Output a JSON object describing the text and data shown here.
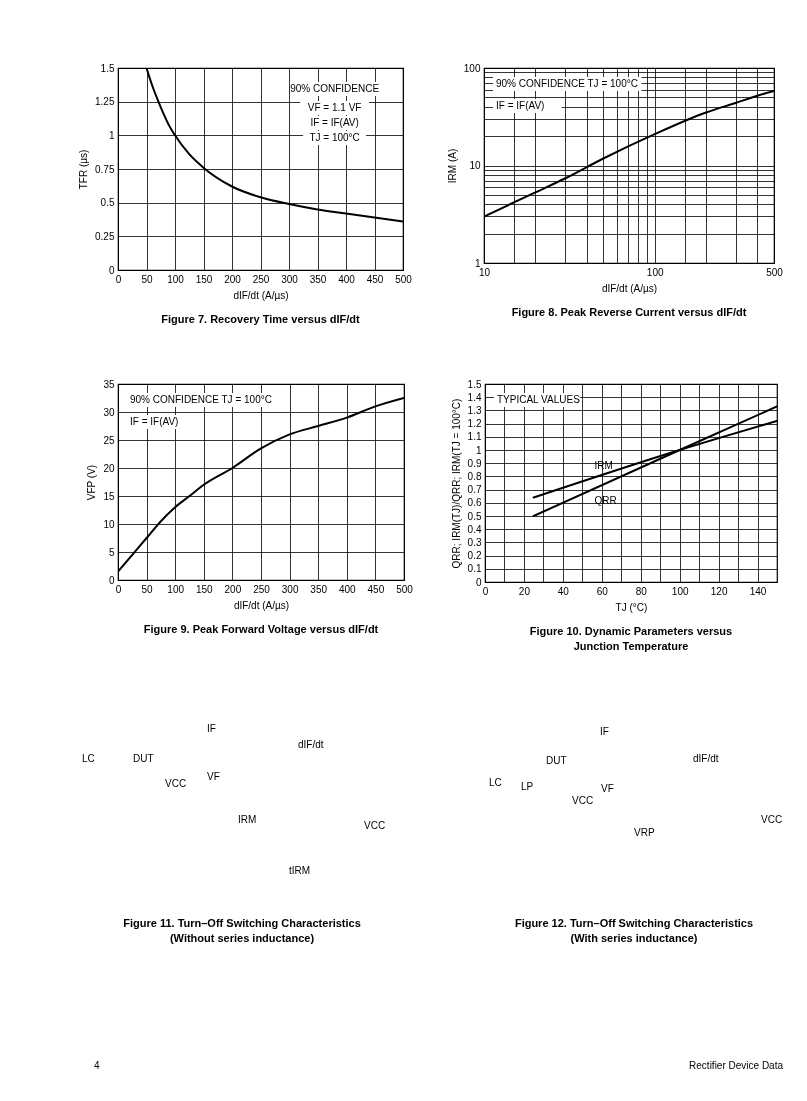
{
  "chart_data": [
    {
      "type": "line",
      "title": "Figure 7. Recovery Time versus dIF/dt",
      "xlabel": "dIF/dt (A/µs)",
      "ylabel": "TFR (µs)",
      "annotations": [
        "90% CONFIDENCE",
        "VF = 1.1 VF",
        "IF = IF(AV)",
        "TJ = 100°C"
      ],
      "x": [
        50,
        60,
        70,
        80,
        90,
        100,
        125,
        150,
        200,
        250,
        300,
        350,
        400,
        450,
        500
      ],
      "series": [
        {
          "color": "#000000",
          "values": [
            1.5,
            1.37,
            1.26,
            1.16,
            1.07,
            1.0,
            0.86,
            0.76,
            0.62,
            0.54,
            0.49,
            0.45,
            0.42,
            0.39,
            0.36
          ]
        }
      ],
      "xlim": [
        0,
        500
      ],
      "xticks": [
        0,
        50,
        100,
        150,
        200,
        250,
        300,
        350,
        400,
        450,
        500
      ],
      "ylim": [
        0,
        1.5
      ],
      "yticks": [
        0,
        0.25,
        0.5,
        0.75,
        1,
        1.25,
        1.5
      ],
      "grid": true
    },
    {
      "type": "line",
      "title": "Figure 8. Peak Reverse Current versus dIF/dt",
      "xlabel": "dIF/dt (A/µs)",
      "ylabel": "IRM (A)",
      "annotations": [
        "90% CONFIDENCE TJ = 100°C",
        "IF = IF(AV)"
      ],
      "x": [
        10,
        20,
        30,
        50,
        100,
        200,
        300,
        400,
        500
      ],
      "series": [
        {
          "color": "#000000",
          "values": [
            3,
            5.3,
            7.4,
            11.8,
            21,
            35,
            44,
            52,
            58
          ]
        }
      ],
      "log": "xy",
      "xlim": [
        10,
        500
      ],
      "xticks": [
        10,
        {
          "value": 15,
          "label": null
        },
        {
          "value": 20,
          "label": null
        },
        {
          "value": 30,
          "label": null
        },
        {
          "value": 40,
          "label": null
        },
        {
          "value": 50,
          "label": null
        },
        {
          "value": 60,
          "label": null
        },
        {
          "value": 70,
          "label": null
        },
        {
          "value": 80,
          "label": null
        },
        {
          "value": 90,
          "label": null
        },
        100,
        {
          "value": 150,
          "label": null
        },
        {
          "value": 200,
          "label": null
        },
        {
          "value": 300,
          "label": null
        },
        {
          "value": 400,
          "label": null
        },
        500
      ],
      "ylim": [
        1,
        100
      ],
      "yticks": [
        1,
        {
          "value": 2,
          "label": null
        },
        {
          "value": 3,
          "label": null
        },
        {
          "value": 4,
          "label": null
        },
        {
          "value": 5,
          "label": null
        },
        {
          "value": 6,
          "label": null
        },
        {
          "value": 7,
          "label": null
        },
        {
          "value": 8,
          "label": null
        },
        {
          "value": 9,
          "label": null
        },
        10,
        {
          "value": 20,
          "label": null
        },
        {
          "value": 30,
          "label": null
        },
        {
          "value": 40,
          "label": null
        },
        {
          "value": 50,
          "label": null
        },
        {
          "value": 60,
          "label": null
        },
        {
          "value": 70,
          "label": null
        },
        {
          "value": 80,
          "label": null
        },
        {
          "value": 90,
          "label": null
        },
        100
      ],
      "grid": true
    },
    {
      "type": "line",
      "title": "Figure 9. Peak Forward Voltage versus dIF/dt",
      "xlabel": "dIF/dt (A/µs)",
      "ylabel": "VFP (V)",
      "annotations": [
        "90% CONFIDENCE TJ = 100°C",
        "IF = IF(AV)"
      ],
      "x": [
        0,
        25,
        50,
        75,
        100,
        125,
        150,
        200,
        250,
        300,
        350,
        400,
        450,
        500
      ],
      "series": [
        {
          "color": "#000000",
          "values": [
            1.5,
            4.5,
            7.5,
            10.5,
            13,
            15,
            17,
            20,
            23.5,
            26,
            27.5,
            29,
            31,
            32.5
          ]
        }
      ],
      "xlim": [
        0,
        500
      ],
      "xticks": [
        0,
        50,
        100,
        150,
        200,
        250,
        300,
        350,
        400,
        450,
        500
      ],
      "ylim": [
        0,
        35
      ],
      "yticks": [
        0,
        5,
        10,
        15,
        20,
        25,
        30,
        35
      ],
      "grid": true
    },
    {
      "type": "line",
      "title": "Figure 10. Dynamic Parameters versus\nJunction Temperature",
      "xlabel": "TJ (°C)",
      "ylabel": "QRR; IRM(TJ)/QRR; IRM(TJ = 100°C)",
      "annotations": [
        "TYPICAL VALUES"
      ],
      "x": [
        25,
        100,
        150
      ],
      "series": [
        {
          "name": "IRM",
          "color": "#000000",
          "values": [
            0.64,
            1.0,
            1.22
          ]
        },
        {
          "name": "QRR",
          "color": "#000000",
          "values": [
            0.5,
            1.0,
            1.33
          ]
        }
      ],
      "xlim": [
        0,
        150
      ],
      "xticks": [
        0,
        {
          "value": 10,
          "label": null
        },
        20,
        {
          "value": 30,
          "label": null
        },
        40,
        {
          "value": 50,
          "label": null
        },
        60,
        {
          "value": 70,
          "label": null
        },
        80,
        {
          "value": 90,
          "label": null
        },
        100,
        {
          "value": 110,
          "label": null
        },
        120,
        {
          "value": 130,
          "label": null
        },
        140
      ],
      "ylim": [
        0,
        1.5
      ],
      "yticks": [
        0,
        0.1,
        0.2,
        0.3,
        0.4,
        0.5,
        0.6,
        0.7,
        0.8,
        0.9,
        1,
        1.1,
        1.2,
        1.3,
        1.4,
        1.5
      ],
      "grid": true
    },
    {
      "type": "other",
      "title": "Figure 11. Turn–Off Switching Characteristics\n(Without series inductance)",
      "annotations": [
        "LC",
        "DUT",
        "VCC",
        "IF",
        "dIF/dt",
        "VF",
        "IRM",
        "VCC",
        "tIRM"
      ]
    },
    {
      "type": "other",
      "title": "Figure 12. Turn–Off Switching Characteristics\n(With series inductance)",
      "annotations": [
        "LC",
        "DUT",
        "LP",
        "VCC",
        "IF",
        "dIF/dt",
        "VF",
        "VRP",
        "VCC"
      ]
    },
    {
      "type": "other",
      "annotations": [
        "4",
        "Rectifier Device Data"
      ]
    }
  ]
}
